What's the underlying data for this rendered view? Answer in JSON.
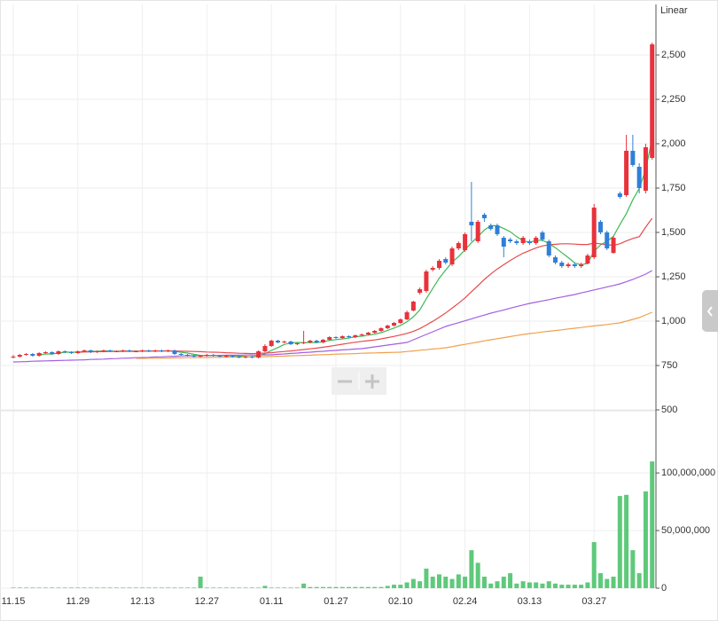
{
  "chart_data": {
    "type": "candlestick",
    "scale_label": "Linear",
    "categories": [
      "11.15",
      null,
      null,
      null,
      null,
      null,
      null,
      null,
      null,
      null,
      "11.29",
      null,
      null,
      null,
      null,
      null,
      null,
      null,
      null,
      null,
      "12.13",
      null,
      null,
      null,
      null,
      null,
      null,
      null,
      null,
      null,
      "12.27",
      null,
      null,
      null,
      null,
      null,
      null,
      null,
      null,
      null,
      "01.11",
      null,
      null,
      null,
      null,
      null,
      null,
      null,
      null,
      null,
      "01.27",
      null,
      null,
      null,
      null,
      null,
      null,
      null,
      null,
      null,
      "02.10",
      null,
      null,
      null,
      null,
      null,
      null,
      null,
      null,
      null,
      "02.24",
      null,
      null,
      null,
      null,
      null,
      null,
      null,
      null,
      null,
      "03.13",
      null,
      null,
      null,
      null,
      null,
      null,
      null,
      null,
      null,
      "03.27",
      null,
      null,
      null,
      null,
      null,
      null,
      null,
      null,
      null
    ],
    "open": [
      795,
      800,
      810,
      815,
      805,
      820,
      825,
      815,
      830,
      825,
      820,
      830,
      835,
      825,
      830,
      835,
      830,
      830,
      835,
      830,
      830,
      835,
      830,
      835,
      830,
      835,
      815,
      810,
      805,
      800,
      805,
      810,
      805,
      800,
      805,
      800,
      795,
      800,
      795,
      830,
      860,
      890,
      880,
      885,
      870,
      875,
      880,
      890,
      880,
      895,
      910,
      905,
      915,
      910,
      920,
      925,
      935,
      945,
      960,
      975,
      990,
      1010,
      1060,
      1160,
      1170,
      1290,
      1300,
      1350,
      1320,
      1410,
      1400,
      1560,
      1450,
      1600,
      1540,
      1540,
      1470,
      1460,
      1450,
      1440,
      1450,
      1440,
      1500,
      1450,
      1360,
      1330,
      1310,
      1320,
      1310,
      1325,
      1360,
      1560,
      1500,
      1385,
      1720,
      1710,
      1960,
      1870,
      1735,
      1920
    ],
    "high": [
      810,
      815,
      820,
      820,
      825,
      830,
      830,
      835,
      835,
      830,
      835,
      840,
      840,
      835,
      840,
      840,
      835,
      840,
      840,
      835,
      840,
      840,
      840,
      840,
      840,
      840,
      820,
      815,
      810,
      810,
      815,
      815,
      810,
      810,
      810,
      805,
      805,
      805,
      835,
      870,
      895,
      895,
      890,
      890,
      880,
      945,
      895,
      895,
      900,
      915,
      915,
      920,
      920,
      925,
      930,
      940,
      950,
      965,
      980,
      995,
      1015,
      1060,
      1115,
      1190,
      1290,
      1310,
      1350,
      1360,
      1420,
      1450,
      1500,
      1785,
      1570,
      1610,
      1550,
      1550,
      1480,
      1470,
      1460,
      1480,
      1460,
      1480,
      1510,
      1460,
      1370,
      1340,
      1330,
      1330,
      1330,
      1380,
      1660,
      1570,
      1510,
      1480,
      1730,
      2050,
      2050,
      1890,
      2000,
      2570
    ],
    "low": [
      790,
      795,
      805,
      800,
      800,
      815,
      810,
      810,
      820,
      815,
      815,
      825,
      820,
      820,
      825,
      825,
      825,
      825,
      825,
      825,
      825,
      825,
      825,
      825,
      825,
      810,
      805,
      800,
      795,
      795,
      800,
      800,
      795,
      795,
      795,
      790,
      790,
      790,
      790,
      825,
      855,
      875,
      875,
      865,
      865,
      870,
      875,
      875,
      875,
      890,
      900,
      900,
      905,
      905,
      915,
      920,
      930,
      940,
      955,
      970,
      985,
      1005,
      1055,
      1150,
      1160,
      1280,
      1290,
      1320,
      1310,
      1400,
      1390,
      1450,
      1440,
      1560,
      1510,
      1480,
      1360,
      1440,
      1430,
      1430,
      1430,
      1430,
      1450,
      1360,
      1320,
      1300,
      1300,
      1300,
      1300,
      1320,
      1350,
      1490,
      1400,
      1380,
      1690,
      1700,
      1870,
      1720,
      1720,
      1910
    ],
    "close": [
      800,
      810,
      815,
      805,
      820,
      825,
      815,
      830,
      825,
      820,
      830,
      835,
      825,
      830,
      835,
      830,
      830,
      835,
      830,
      830,
      835,
      830,
      835,
      830,
      835,
      815,
      810,
      805,
      800,
      805,
      810,
      805,
      800,
      805,
      800,
      795,
      800,
      795,
      830,
      860,
      890,
      880,
      885,
      870,
      875,
      880,
      890,
      880,
      895,
      910,
      905,
      915,
      910,
      920,
      925,
      935,
      945,
      960,
      975,
      990,
      1010,
      1050,
      1110,
      1180,
      1280,
      1300,
      1340,
      1330,
      1410,
      1440,
      1490,
      1540,
      1560,
      1580,
      1520,
      1490,
      1420,
      1450,
      1440,
      1470,
      1440,
      1470,
      1460,
      1370,
      1330,
      1310,
      1320,
      1310,
      1320,
      1370,
      1640,
      1500,
      1410,
      1470,
      1700,
      1960,
      1880,
      1750,
      1980,
      2560
    ],
    "up_color": "#e8323c",
    "down_color": "#2f7fd8",
    "series": [
      {
        "color": "#3cba54",
        "values": [
          null,
          null,
          null,
          null,
          810,
          815,
          815,
          820,
          825,
          825,
          825,
          828,
          830,
          830,
          832,
          832,
          830,
          832,
          832,
          831,
          832,
          832,
          832,
          832,
          833,
          830,
          825,
          820,
          813,
          807,
          806,
          806,
          806,
          805,
          805,
          803,
          800,
          799,
          806,
          816,
          835,
          851,
          869,
          877,
          880,
          878,
          880,
          879,
          884,
          891,
          896,
          900,
          905,
          912,
          915,
          921,
          927,
          935,
          948,
          961,
          976,
          996,
          1025,
          1063,
          1126,
          1184,
          1242,
          1288,
          1332,
          1364,
          1402,
          1442,
          1476,
          1514,
          1538,
          1538,
          1522,
          1504,
          1476,
          1454,
          1444,
          1455,
          1456,
          1438,
          1414,
          1386,
          1358,
          1328,
          1318,
          1326,
          1394,
          1430,
          1450,
          1478,
          1544,
          1606,
          1684,
          1748,
          1854,
          2026
        ]
      },
      {
        "color": "#e84a4a",
        "values": [
          null,
          null,
          null,
          null,
          null,
          null,
          null,
          null,
          null,
          null,
          825,
          826,
          827,
          828,
          828,
          829,
          829,
          830,
          830,
          830,
          831,
          831,
          832,
          832,
          832,
          832,
          831,
          830,
          829,
          828,
          826,
          825,
          824,
          822,
          821,
          819,
          818,
          817,
          818,
          820,
          822,
          826,
          829,
          832,
          836,
          840,
          844,
          848,
          853,
          858,
          864,
          870,
          876,
          881,
          886,
          890,
          894,
          900,
          907,
          914,
          922,
          931,
          943,
          958,
          978,
          999,
          1022,
          1046,
          1073,
          1101,
          1131,
          1166,
          1200,
          1235,
          1266,
          1294,
          1318,
          1342,
          1363,
          1383,
          1398,
          1413,
          1424,
          1430,
          1433,
          1436,
          1436,
          1434,
          1432,
          1432,
          1440,
          1436,
          1430,
          1428,
          1436,
          1452,
          1466,
          1476,
          1530,
          1580
        ]
      },
      {
        "color": "#a35fe0",
        "values": [
          770,
          771,
          772,
          774,
          775,
          776,
          777,
          778,
          779,
          780,
          781,
          782,
          784,
          785,
          786,
          788,
          789,
          791,
          792,
          794,
          795,
          796,
          798,
          799,
          801,
          802,
          804,
          805,
          805,
          806,
          806,
          807,
          807,
          808,
          808,
          808,
          809,
          809,
          809,
          810,
          810,
          813,
          815,
          818,
          820,
          823,
          825,
          828,
          830,
          833,
          835,
          838,
          840,
          843,
          845,
          850,
          855,
          860,
          865,
          870,
          875,
          880,
          895,
          910,
          925,
          940,
          955,
          970,
          981,
          991,
          1002,
          1013,
          1024,
          1034,
          1045,
          1054,
          1063,
          1073,
          1082,
          1091,
          1100,
          1107,
          1114,
          1121,
          1129,
          1136,
          1143,
          1150,
          1159,
          1167,
          1176,
          1184,
          1193,
          1201,
          1210,
          1222,
          1235,
          1250,
          1265,
          1285
        ]
      },
      {
        "color": "#f0a04b",
        "values": [
          null,
          null,
          null,
          null,
          null,
          null,
          null,
          null,
          null,
          null,
          null,
          null,
          null,
          null,
          null,
          null,
          null,
          null,
          null,
          790,
          790,
          791,
          791,
          792,
          792,
          793,
          793,
          794,
          794,
          795,
          795,
          796,
          796,
          797,
          797,
          798,
          798,
          799,
          799,
          800,
          801,
          802,
          803,
          805,
          806,
          807,
          808,
          810,
          811,
          812,
          814,
          815,
          816,
          817,
          819,
          820,
          821,
          822,
          823,
          824,
          825,
          829,
          832,
          836,
          839,
          843,
          846,
          850,
          856,
          863,
          869,
          876,
          882,
          889,
          895,
          901,
          907,
          913,
          919,
          925,
          930,
          934,
          939,
          943,
          947,
          951,
          956,
          960,
          964,
          969,
          973,
          977,
          981,
          986,
          990,
          1000,
          1010,
          1020,
          1035,
          1050
        ]
      }
    ],
    "ylim": [
      500,
      2785
    ],
    "yticks": [
      500,
      750,
      {
        "value": 1000,
        "label": "1,000"
      },
      {
        "value": 1250,
        "label": "1,250"
      },
      {
        "value": 1500,
        "label": "1,500"
      },
      {
        "value": 1750,
        "label": "1,750"
      },
      {
        "value": 2000,
        "label": "2,000"
      },
      {
        "value": 2250,
        "label": "2,250"
      },
      {
        "value": 2500,
        "label": "2,500"
      }
    ],
    "volume": {
      "color": "#5ec97a",
      "values": [
        500000,
        500000,
        500000,
        500000,
        500000,
        500000,
        500000,
        500000,
        500000,
        500000,
        500000,
        500000,
        500000,
        500000,
        500000,
        500000,
        500000,
        500000,
        500000,
        500000,
        500000,
        500000,
        500000,
        500000,
        500000,
        500000,
        500000,
        500000,
        500000,
        10000000,
        500000,
        500000,
        500000,
        500000,
        500000,
        500000,
        500000,
        500000,
        500000,
        2000000,
        500000,
        500000,
        500000,
        500000,
        500000,
        4000000,
        1000000,
        1000000,
        1000000,
        1000000,
        1000000,
        1000000,
        1000000,
        1000000,
        1000000,
        1000000,
        1000000,
        1000000,
        2000000,
        3000000,
        3000000,
        5000000,
        8000000,
        6000000,
        17000000,
        10000000,
        12000000,
        10000000,
        8000000,
        12000000,
        10000000,
        33000000,
        22000000,
        10000000,
        4000000,
        6000000,
        10000000,
        13000000,
        4000000,
        6000000,
        5000000,
        5000000,
        4000000,
        6000000,
        4000000,
        3000000,
        3000000,
        3000000,
        3000000,
        5000000,
        40000000,
        13000000,
        8000000,
        10000000,
        80000000,
        81000000,
        33000000,
        13000000,
        84000000,
        110000000
      ],
      "ylim": [
        0,
        154000000
      ],
      "yticks": [
        0,
        {
          "value": 50000000,
          "label": "50,000,000"
        },
        {
          "value": 100000000,
          "label": "100,000,000"
        }
      ]
    }
  }
}
